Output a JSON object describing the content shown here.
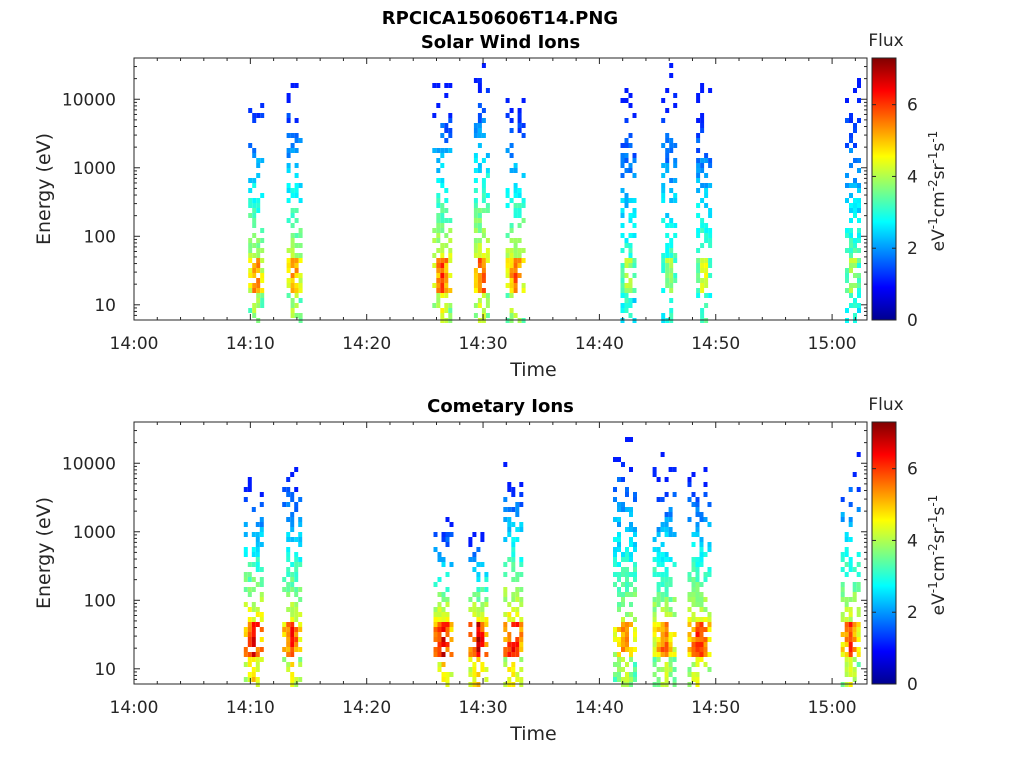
{
  "figure_title": "RPCICA150606T14.PNG",
  "chart_data": [
    {
      "type": "heatmap",
      "title": "Solar Wind Ions",
      "xlabel": "Time",
      "ylabel": "Energy (eV)",
      "xlim": [
        "14:00",
        "15:03"
      ],
      "ylim": [
        6,
        40000
      ],
      "yscale": "log",
      "x_ticks": [
        "14:00",
        "14:10",
        "14:20",
        "14:30",
        "14:40",
        "14:50",
        "15:00"
      ],
      "y_ticks": [
        "10",
        "100",
        "1000",
        "10000"
      ],
      "colorbar": {
        "title": "Flux",
        "label": "eV-1cm-2sr-1s-1",
        "range": [
          0,
          7.3
        ],
        "ticks": [
          "0",
          "2",
          "4",
          "6"
        ]
      },
      "bursts": [
        {
          "time_min": 10.5,
          "width_min": 1.4,
          "emax": 17000,
          "peak_flux": 6.0
        },
        {
          "time_min": 13.8,
          "width_min": 1.4,
          "emax": 15000,
          "peak_flux": 6.0
        },
        {
          "time_min": 26.5,
          "width_min": 1.6,
          "emax": 15000,
          "peak_flux": 6.4
        },
        {
          "time_min": 29.9,
          "width_min": 1.5,
          "emax": 30000,
          "peak_flux": 6.4
        },
        {
          "time_min": 32.8,
          "width_min": 1.6,
          "emax": 12000,
          "peak_flux": 6.2
        },
        {
          "time_min": 42.5,
          "width_min": 1.5,
          "emax": 15000,
          "peak_flux": 4.6
        },
        {
          "time_min": 46.0,
          "width_min": 1.4,
          "emax": 30000,
          "peak_flux": 4.6
        },
        {
          "time_min": 49.0,
          "width_min": 1.5,
          "emax": 15000,
          "peak_flux": 5.0
        },
        {
          "time_min": 61.8,
          "width_min": 1.4,
          "emax": 20000,
          "peak_flux": 4.8
        }
      ]
    },
    {
      "type": "heatmap",
      "title": "Cometary Ions",
      "xlabel": "Time",
      "ylabel": "Energy (eV)",
      "xlim": [
        "14:00",
        "15:03"
      ],
      "ylim": [
        6,
        40000
      ],
      "yscale": "log",
      "x_ticks": [
        "14:00",
        "14:10",
        "14:20",
        "14:30",
        "14:40",
        "14:50",
        "15:00"
      ],
      "y_ticks": [
        "10",
        "100",
        "1000",
        "10000"
      ],
      "colorbar": {
        "title": "Flux",
        "label": "eV-1cm-2sr-1s-1",
        "range": [
          0,
          7.3
        ],
        "ticks": [
          "0",
          "2",
          "4",
          "6"
        ]
      },
      "bursts": [
        {
          "time_min": 10.3,
          "width_min": 1.8,
          "emax": 6000,
          "peak_flux": 7.0
        },
        {
          "time_min": 13.6,
          "width_min": 1.8,
          "emax": 9000,
          "peak_flux": 6.6
        },
        {
          "time_min": 26.6,
          "width_min": 1.8,
          "emax": 1500,
          "peak_flux": 7.0
        },
        {
          "time_min": 29.6,
          "width_min": 1.8,
          "emax": 900,
          "peak_flux": 7.2
        },
        {
          "time_min": 32.6,
          "width_min": 1.8,
          "emax": 9000,
          "peak_flux": 7.0
        },
        {
          "time_min": 42.2,
          "width_min": 2.0,
          "emax": 25000,
          "peak_flux": 6.0
        },
        {
          "time_min": 45.6,
          "width_min": 2.0,
          "emax": 12000,
          "peak_flux": 6.2
        },
        {
          "time_min": 48.6,
          "width_min": 2.0,
          "emax": 8000,
          "peak_flux": 6.6
        },
        {
          "time_min": 61.6,
          "width_min": 1.6,
          "emax": 13000,
          "peak_flux": 6.4
        }
      ]
    }
  ]
}
